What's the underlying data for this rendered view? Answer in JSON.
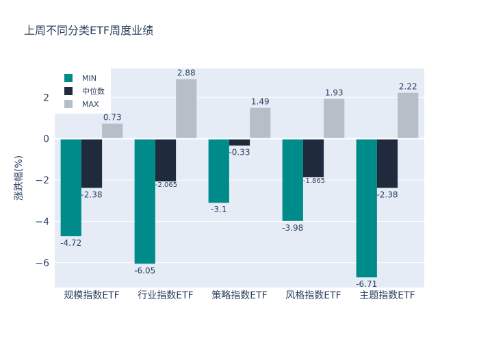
{
  "chart_data": {
    "type": "bar",
    "title": "上周不同分类ETF周度业绩",
    "xlabel": "",
    "ylabel": "涨跌幅(%)",
    "ylim": [
      -7.2,
      3.4
    ],
    "yticks": [
      -6,
      -4,
      -2,
      0,
      2
    ],
    "ytick_labels": [
      "−6",
      "−4",
      "−2",
      "0",
      "2"
    ],
    "categories": [
      "规模指数ETF",
      "行业指数ETF",
      "策略指数ETF",
      "风格指数ETF",
      "主题指数ETF"
    ],
    "series": [
      {
        "name": "MIN",
        "color": "#008b8b",
        "values": [
          -4.72,
          -6.05,
          -3.1,
          -3.98,
          -6.71
        ],
        "labels": [
          "-4.72",
          "-6.05",
          "-3.1",
          "-3.98",
          "-6.71"
        ]
      },
      {
        "name": "中位数",
        "color": "#1f2a3c",
        "values": [
          -2.38,
          -2.065,
          -0.33,
          -1.865,
          -2.38
        ],
        "labels": [
          "-2.38",
          "-2.065",
          "-0.33",
          "-1.865",
          "-2.38"
        ]
      },
      {
        "name": "MAX",
        "color": "#b6bec8",
        "values": [
          0.73,
          2.88,
          1.49,
          1.93,
          2.22
        ],
        "labels": [
          "0.73",
          "2.88",
          "1.49",
          "1.93",
          "2.22"
        ]
      }
    ],
    "grid": true,
    "legend": "top-left",
    "plot_bg": "#e5ecf6"
  }
}
